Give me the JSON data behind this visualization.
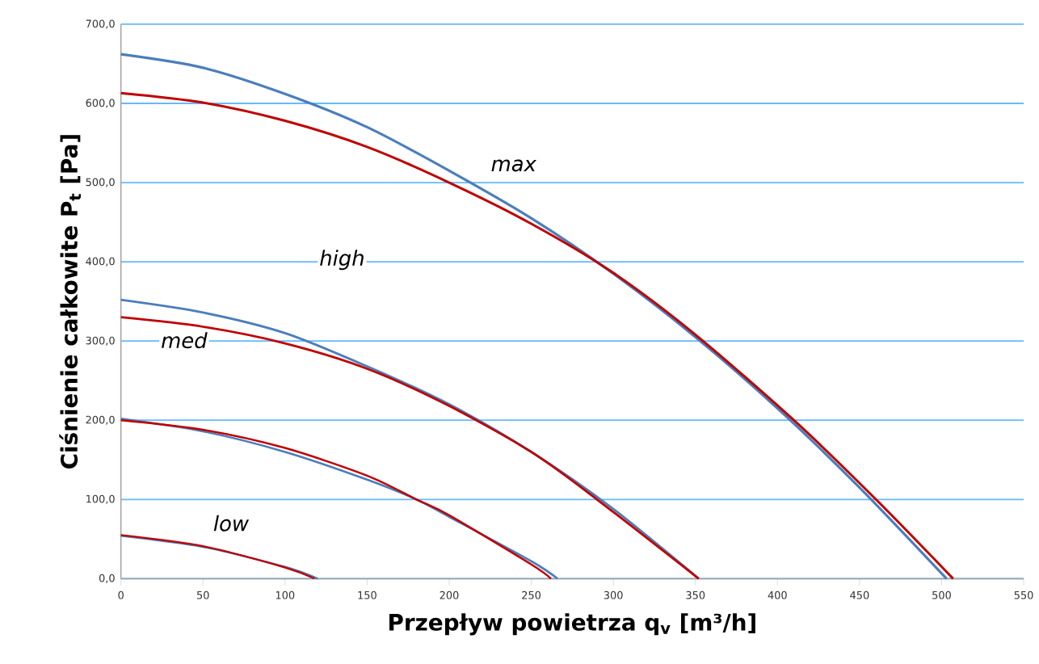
{
  "chart_data": {
    "type": "line",
    "xlabel": "Przepływ powietrza q$_{v}$ [m³/h]",
    "ylabel": "Ciśnienie całkowite P$_{t}$ [Pa]",
    "xlim": [
      0,
      550
    ],
    "xticks": [
      0,
      50,
      100,
      150,
      200,
      250,
      300,
      350,
      400,
      450,
      500,
      550
    ],
    "ylim": [
      0,
      700
    ],
    "yticks": [
      {
        "value": 0,
        "label": "0,0"
      },
      {
        "value": 100,
        "label": "100,0"
      },
      {
        "value": 200,
        "label": "200,0"
      },
      {
        "value": 300,
        "label": "300,0"
      },
      {
        "value": 400,
        "label": "400,0"
      },
      {
        "value": 500,
        "label": "500,0"
      },
      {
        "value": 600,
        "label": "600,0"
      },
      {
        "value": 700,
        "label": "700,0"
      }
    ],
    "grid": "y",
    "line_style": "solid",
    "marker": "none",
    "series": [
      {
        "color": "#4a7ebb",
        "x": [
          0,
          50,
          100,
          150,
          200,
          250,
          300,
          350,
          400,
          450,
          503
        ],
        "values": [
          662,
          645,
          612,
          570,
          515,
          455,
          385,
          305,
          215,
          115,
          0
        ]
      },
      {
        "color": "#c00000",
        "x": [
          0,
          50,
          100,
          150,
          200,
          250,
          300,
          350,
          410,
          460,
          507
        ],
        "values": [
          613,
          601,
          578,
          545,
          500,
          448,
          386,
          308,
          200,
          100,
          0
        ]
      },
      {
        "color": "#4a7ebb",
        "x": [
          0,
          50,
          100,
          150,
          200,
          250,
          300,
          352
        ],
        "values": [
          352,
          336,
          310,
          268,
          220,
          160,
          88,
          0
        ]
      },
      {
        "color": "#c00000",
        "x": [
          0,
          50,
          100,
          150,
          200,
          250,
          290,
          352
        ],
        "values": [
          330,
          318,
          297,
          265,
          218,
          160,
          100,
          0
        ]
      },
      {
        "color": "#4a7ebb",
        "x": [
          0,
          50,
          100,
          150,
          180,
          200,
          250,
          266
        ],
        "values": [
          202,
          186,
          160,
          125,
          100,
          78,
          22,
          0
        ]
      },
      {
        "color": "#c00000",
        "x": [
          0,
          50,
          100,
          150,
          180,
          200,
          250,
          262
        ],
        "values": [
          200,
          188,
          165,
          130,
          100,
          80,
          18,
          0
        ]
      },
      {
        "color": "#4a7ebb",
        "x": [
          0,
          50,
          100,
          120
        ],
        "values": [
          54,
          40,
          15,
          0
        ]
      },
      {
        "color": "#c00000",
        "x": [
          0,
          50,
          100,
          118
        ],
        "values": [
          55,
          41,
          14,
          0
        ]
      }
    ],
    "annotations": [
      "max",
      "high",
      "med",
      "low"
    ]
  }
}
